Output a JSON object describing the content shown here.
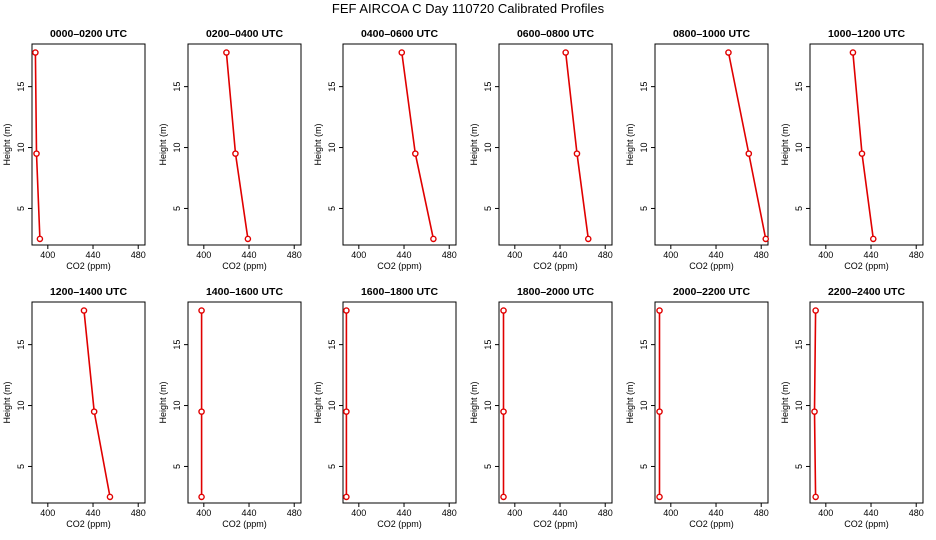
{
  "title": "FEF  AIRCOA C  Day 110720  Calibrated Profiles",
  "chart_data": {
    "type": "line",
    "xlabel": "CO2 (ppm)",
    "ylabel": "Height (m)",
    "xlim": [
      386,
      486
    ],
    "ylim": [
      2,
      18.5
    ],
    "xticks": [
      400,
      440,
      480
    ],
    "yticks": [
      5,
      10,
      15
    ],
    "line_color": "#e00000",
    "grid": false,
    "panels": [
      {
        "title": "0000–0200 UTC",
        "x": [
          389,
          390,
          393
        ],
        "y": [
          17.8,
          9.5,
          2.5
        ]
      },
      {
        "title": "0200–0400 UTC",
        "x": [
          420,
          428,
          439
        ],
        "y": [
          17.8,
          9.5,
          2.5
        ]
      },
      {
        "title": "0400–0600 UTC",
        "x": [
          438,
          450,
          466
        ],
        "y": [
          17.8,
          9.5,
          2.5
        ]
      },
      {
        "title": "0600–0800 UTC",
        "x": [
          445,
          455,
          465
        ],
        "y": [
          17.8,
          9.5,
          2.5
        ]
      },
      {
        "title": "0800–1000 UTC",
        "x": [
          451,
          469,
          484
        ],
        "y": [
          17.8,
          9.5,
          2.5
        ]
      },
      {
        "title": "1000–1200 UTC",
        "x": [
          424,
          432,
          442
        ],
        "y": [
          17.8,
          9.5,
          2.5
        ]
      },
      {
        "title": "1200–1400 UTC",
        "x": [
          432,
          441,
          455
        ],
        "y": [
          17.8,
          9.5,
          2.5
        ]
      },
      {
        "title": "1400–1600 UTC",
        "x": [
          398,
          398,
          398
        ],
        "y": [
          17.8,
          9.5,
          2.5
        ]
      },
      {
        "title": "1600–1800 UTC",
        "x": [
          389,
          389,
          389
        ],
        "y": [
          17.8,
          9.5,
          2.5
        ]
      },
      {
        "title": "1800–2000 UTC",
        "x": [
          390,
          390,
          390
        ],
        "y": [
          17.8,
          9.5,
          2.5
        ]
      },
      {
        "title": "2000–2200 UTC",
        "x": [
          390,
          390,
          390
        ],
        "y": [
          17.8,
          9.5,
          2.5
        ]
      },
      {
        "title": "2200–2400 UTC",
        "x": [
          391,
          390,
          391
        ],
        "y": [
          17.8,
          9.5,
          2.5
        ]
      }
    ]
  }
}
